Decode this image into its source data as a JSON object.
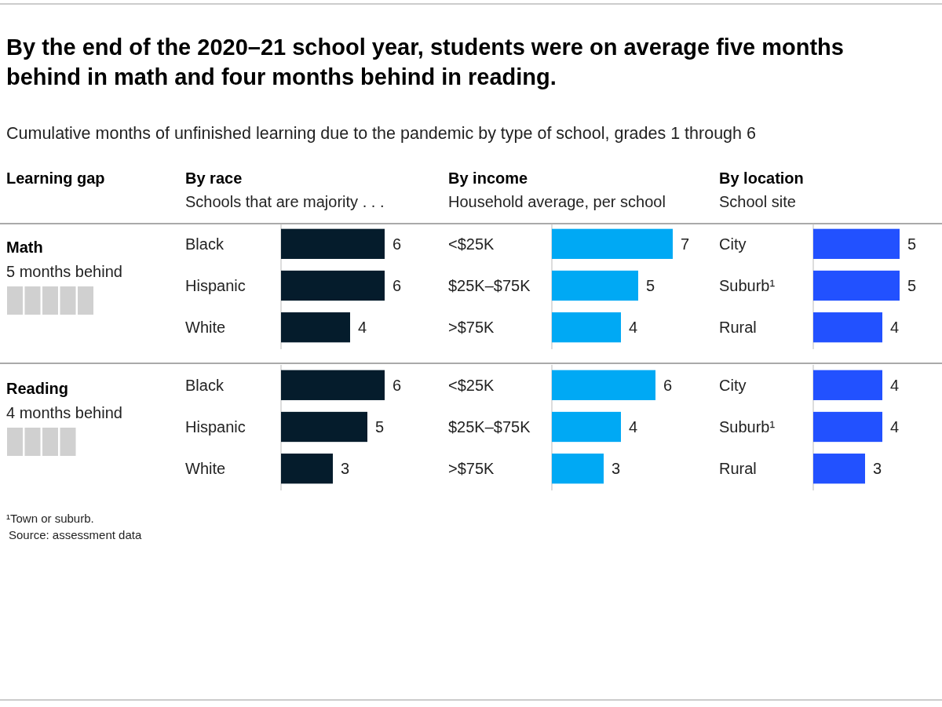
{
  "chart_data": [
    {
      "type": "other",
      "title": "By the end of the 2020–21 school year, students were on average five months behind in math and four months behind in reading.",
      "subtitle": "Cumulative months of unfinished learning due to the pandemic by type of school, grades 1 through 6",
      "categories": [
        "Math",
        "Reading"
      ],
      "values": [
        5,
        4
      ],
      "value_labels": [
        "5 months behind",
        "4 months behind"
      ],
      "color": "#d0d0d0",
      "annotations": [
        "Learning gap",
        "¹Town or suburb.",
        "Source: assessment data"
      ]
    },
    {
      "type": "bar",
      "orientation": "horizontal",
      "title": "By race",
      "subtitle": "Schools that are majority . . .",
      "categories": [
        "Black",
        "Hispanic",
        "White"
      ],
      "values": [
        6,
        6,
        4
      ],
      "color": "#051c2c",
      "data_labels": true
    },
    {
      "type": "bar",
      "orientation": "horizontal",
      "title": "By income",
      "subtitle": "Household average, per school",
      "categories": [
        "<$25K",
        "$25K–$75K",
        ">$75K"
      ],
      "values": [
        7,
        5,
        4
      ],
      "color": "#00a9f4",
      "data_labels": true
    },
    {
      "type": "bar",
      "orientation": "horizontal",
      "title": "By location",
      "subtitle": "School site",
      "categories": [
        "City",
        "Suburb¹",
        "Rural"
      ],
      "values": [
        5,
        5,
        4
      ],
      "color": "#2251ff",
      "data_labels": true
    },
    {
      "type": "bar",
      "orientation": "horizontal",
      "categories": [
        "Black",
        "Hispanic",
        "White"
      ],
      "values": [
        6,
        5,
        3
      ],
      "color": "#051c2c",
      "data_labels": true
    },
    {
      "type": "bar",
      "orientation": "horizontal",
      "categories": [
        "<$25K",
        "$25K–$75K",
        ">$75K"
      ],
      "values": [
        6,
        4,
        3
      ],
      "color": "#00a9f4",
      "data_labels": true
    },
    {
      "type": "bar",
      "orientation": "horizontal",
      "categories": [
        "City",
        "Suburb¹",
        "Rural"
      ],
      "values": [
        4,
        4,
        3
      ],
      "color": "#2251ff",
      "data_labels": true
    }
  ]
}
